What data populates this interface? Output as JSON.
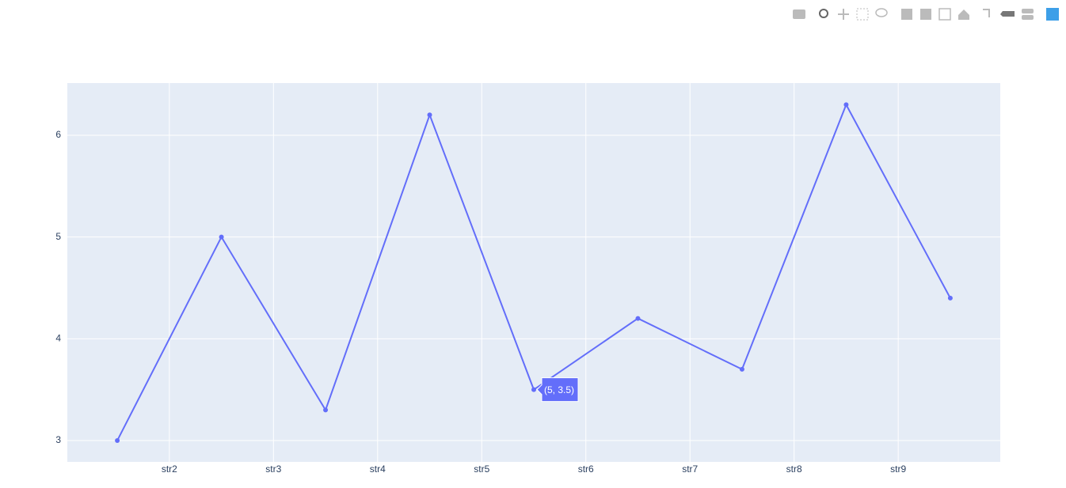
{
  "chart_data": {
    "type": "line",
    "x": [
      1,
      2,
      3,
      4,
      5,
      6,
      7,
      8,
      9
    ],
    "series": [
      {
        "color": "#636efa",
        "values": [
          3,
          5,
          3.3,
          6.2,
          3.5,
          4.2,
          3.7,
          6.3,
          4.4
        ]
      }
    ],
    "xlim": [
      0.52,
      9.48
    ],
    "xticks": [
      {
        "value": 1.5,
        "label": "str2"
      },
      {
        "value": 2.5,
        "label": "str3"
      },
      {
        "value": 3.5,
        "label": "str4"
      },
      {
        "value": 4.5,
        "label": "str5"
      },
      {
        "value": 5.5,
        "label": "str6"
      },
      {
        "value": 6.5,
        "label": "str7"
      },
      {
        "value": 7.5,
        "label": "str8"
      },
      {
        "value": 8.5,
        "label": "str9"
      }
    ],
    "ylim": [
      2.79,
      6.513
    ],
    "yticks": [
      3,
      4,
      5,
      6
    ],
    "grid": true,
    "hover_label": "(5, 3.5)"
  }
}
